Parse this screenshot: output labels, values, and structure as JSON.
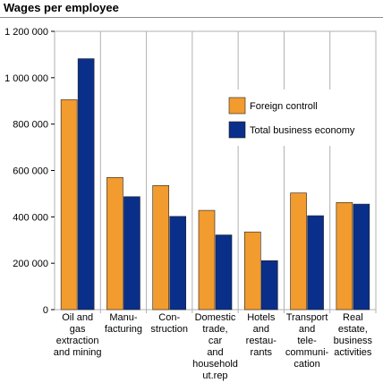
{
  "chart_data": {
    "type": "bar",
    "title": "Wages per employee",
    "categories": [
      [
        "Oil and",
        "gas",
        "extraction",
        "and mining"
      ],
      [
        "Manu-",
        "facturing"
      ],
      [
        "Con-",
        "struction"
      ],
      [
        "Domestic",
        "trade,",
        "car",
        "and",
        "household",
        "ut.rep"
      ],
      [
        "Hotels",
        "and",
        "restau-",
        "rants"
      ],
      [
        "Transport",
        "and",
        "tele-",
        "communi-",
        "cation"
      ],
      [
        "Real",
        "estate,",
        "business",
        "activities"
      ]
    ],
    "series": [
      {
        "name": "Foreign controll",
        "color": "#f29b2e",
        "values": [
          905000,
          570000,
          535000,
          428000,
          335000,
          503000,
          462000
        ]
      },
      {
        "name": "Total business economy",
        "color": "#0a2f8a",
        "values": [
          1082000,
          487000,
          402000,
          322000,
          211000,
          405000,
          455000
        ]
      }
    ],
    "ylim": [
      0,
      1200000
    ],
    "yticks": [
      "0",
      "200 000",
      "400 000",
      "600 000",
      "800 000",
      "1 000 000",
      "1 200 000"
    ],
    "legend": "inside-right",
    "grid": false
  }
}
